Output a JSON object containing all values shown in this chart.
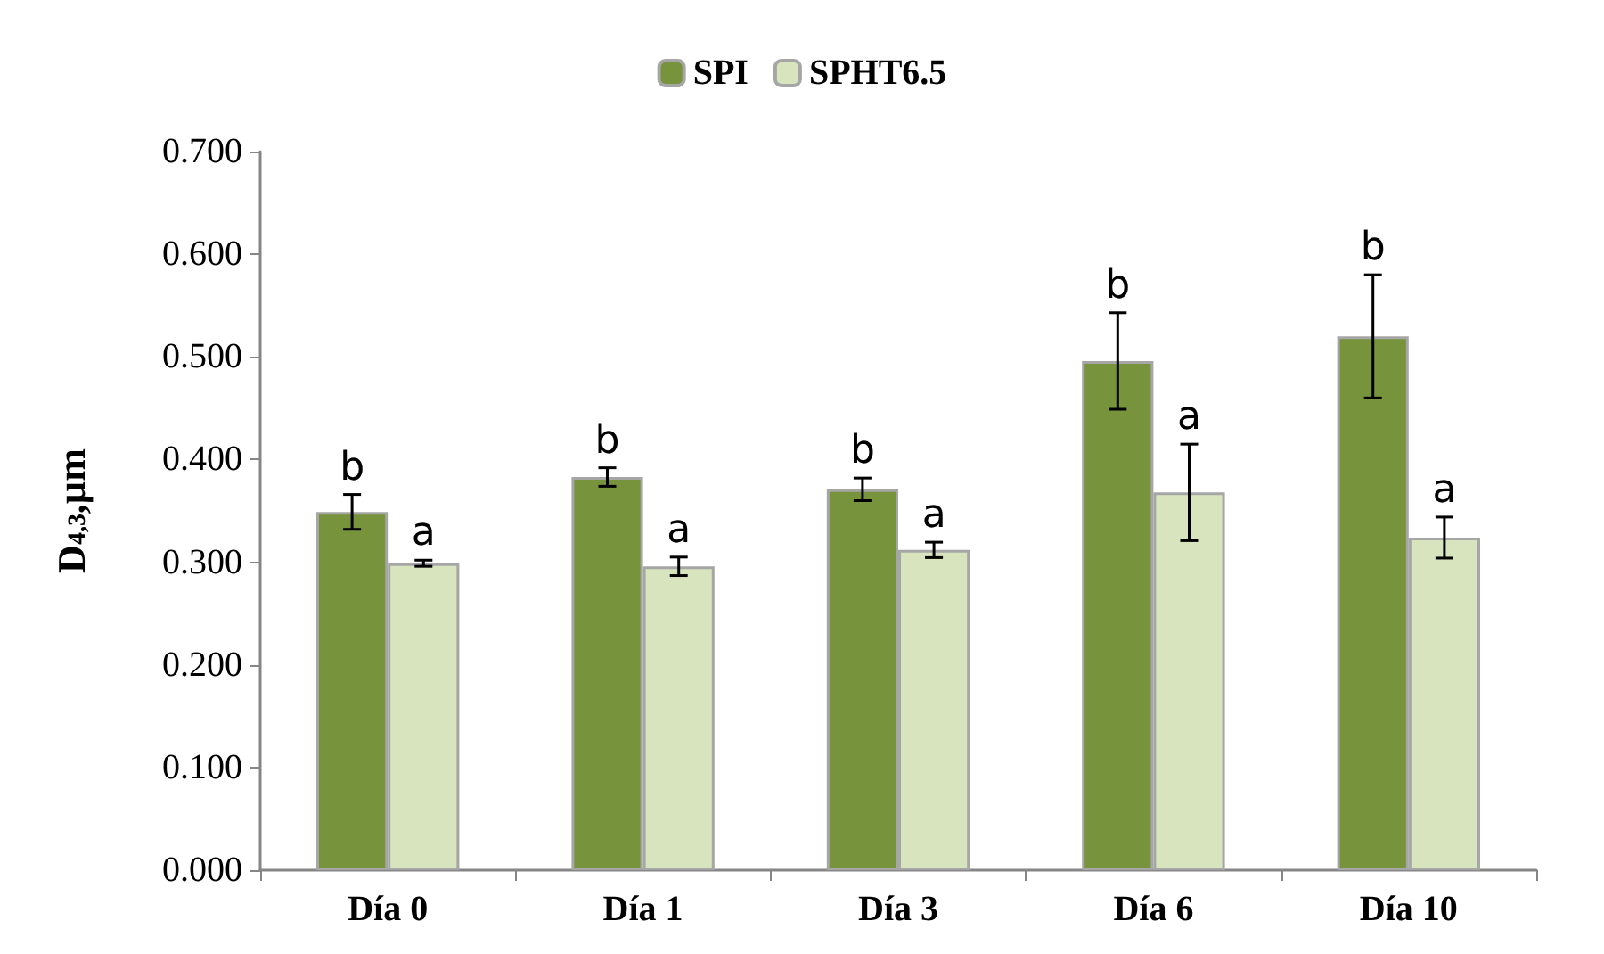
{
  "chart_data": {
    "type": "bar",
    "ylabel": "D$_{4,3}$,µm",
    "categories": [
      "Día 0",
      "Día 1",
      "Día 3",
      "Día 6",
      "Día 10"
    ],
    "series": [
      {
        "name": "SPI",
        "color": "#77933c",
        "values": [
          0.349,
          0.383,
          0.371,
          0.496,
          0.52
        ],
        "errors": [
          0.017,
          0.009,
          0.011,
          0.047,
          0.06
        ]
      },
      {
        "name": "SPHT6.5",
        "color": "#d7e4bd",
        "values": [
          0.299,
          0.296,
          0.312,
          0.368,
          0.324
        ],
        "errors": [
          0.003,
          0.009,
          0.0075,
          0.047,
          0.02
        ]
      }
    ],
    "ylim": [
      0,
      0.7
    ],
    "yticks": [
      {
        "value": 0,
        "label": "0.000"
      },
      {
        "value": 0.1,
        "label": "0.100"
      },
      {
        "value": 0.2,
        "label": "0.200"
      },
      {
        "value": 0.3,
        "label": "0.300"
      },
      {
        "value": 0.4,
        "label": "0.400"
      },
      {
        "value": 0.5,
        "label": "0.500"
      },
      {
        "value": 0.6,
        "label": "0.600"
      },
      {
        "value": 0.7,
        "label": "0.700"
      }
    ],
    "grid": false,
    "legend": "top",
    "annotations": [
      {
        "text": "b",
        "x": "Día 0",
        "y": 0.349
      },
      {
        "text": "a",
        "x": "Día 0",
        "y": 0.299
      },
      {
        "text": "b",
        "x": "Día 1",
        "y": 0.383
      },
      {
        "text": "a",
        "x": "Día 1",
        "y": 0.296
      },
      {
        "text": "b",
        "x": "Día 3",
        "y": 0.371
      },
      {
        "text": "a",
        "x": "Día 3",
        "y": 0.312
      },
      {
        "text": "b",
        "x": "Día 6",
        "y": 0.496
      },
      {
        "text": "a",
        "x": "Día 6",
        "y": 0.368
      },
      {
        "text": "b",
        "x": "Día 10",
        "y": 0.52
      },
      {
        "text": "a",
        "x": "Día 10",
        "y": 0.324
      }
    ]
  }
}
